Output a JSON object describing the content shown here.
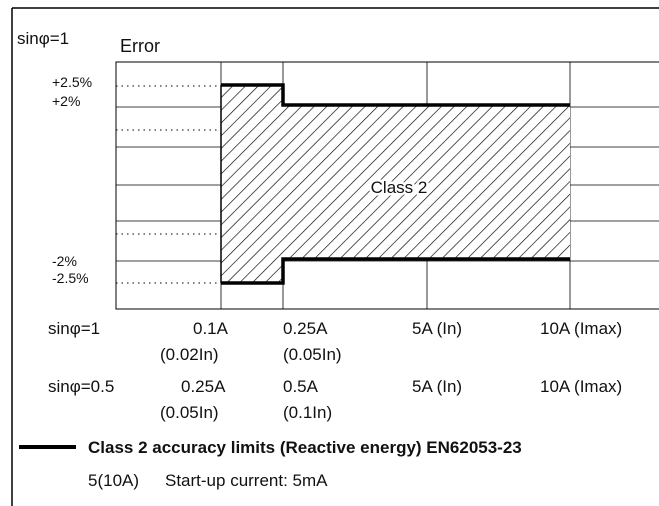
{
  "header": {
    "top_text": "sinφ=1",
    "title": "Error"
  },
  "y_labels": {
    "plus_2_5": "+2.5%",
    "plus_2": "+2%",
    "minus_2": "-2%",
    "minus_2_5": "-2.5%"
  },
  "region_label": "Class 2",
  "rows": {
    "pf1": {
      "label": "sinφ=1",
      "c1": "0.1A",
      "c1_sub": "(0.02In)",
      "c2": "0.25A",
      "c2_sub": "(0.05In)",
      "c3": "5A (In)",
      "c4": "10A (Imax)"
    },
    "pf05": {
      "label": "sinφ=0.5",
      "c1": "0.25A",
      "c1_sub": "(0.05In)",
      "c2": "0.5A",
      "c2_sub": "(0.1In)",
      "c3": "5A (In)",
      "c4": "10A (Imax)"
    }
  },
  "legend": {
    "title": "Class 2 accuracy limits (Reactive energy) EN62053-23",
    "note_rating": "5(10A)",
    "note_startup": "Start-up current: 5mA"
  }
}
